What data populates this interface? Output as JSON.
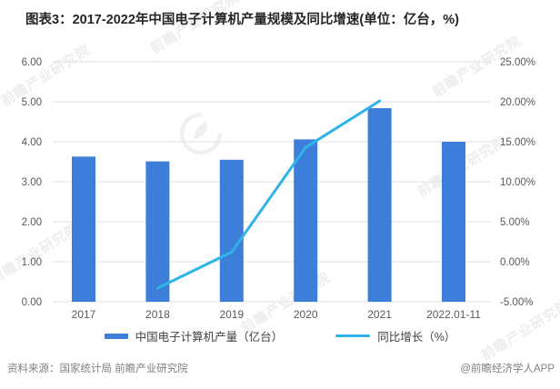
{
  "title": "图表3：2017-2022年中国电子计算机产量规模及同比增速(单位：亿台，%)",
  "chart_data": {
    "type": "bar",
    "subtype": "bar-line-combo",
    "categories": [
      "2017",
      "2018",
      "2019",
      "2020",
      "2021",
      "2022.01-11"
    ],
    "series": [
      {
        "name": "中国电子计算机产量（亿台）",
        "type": "bar",
        "axis": "left",
        "color": "#3d7edb",
        "values": [
          3.63,
          3.51,
          3.55,
          4.06,
          4.84,
          4.0
        ]
      },
      {
        "name": "同比增长（%）",
        "type": "line",
        "axis": "right",
        "color": "#2fb3e8",
        "values": [
          null,
          -3.3,
          1.2,
          14.3,
          20.1,
          null
        ]
      }
    ],
    "left_axis": {
      "min": 0,
      "max": 6,
      "step": 1,
      "tick_suffix": "",
      "decimals": 2
    },
    "right_axis": {
      "min": -5,
      "max": 25,
      "step": 5,
      "tick_suffix": "%",
      "decimals": 2
    },
    "grid": true,
    "gridline_color": "#e2e2e2",
    "tick_color": "#595959",
    "legend_position": "bottom"
  },
  "footer": {
    "source": "资料来源：国家统计局 前瞻产业研究院",
    "credit": "@前瞻经济学人APP"
  },
  "watermark": {
    "text": "前瞻产业研究院"
  }
}
